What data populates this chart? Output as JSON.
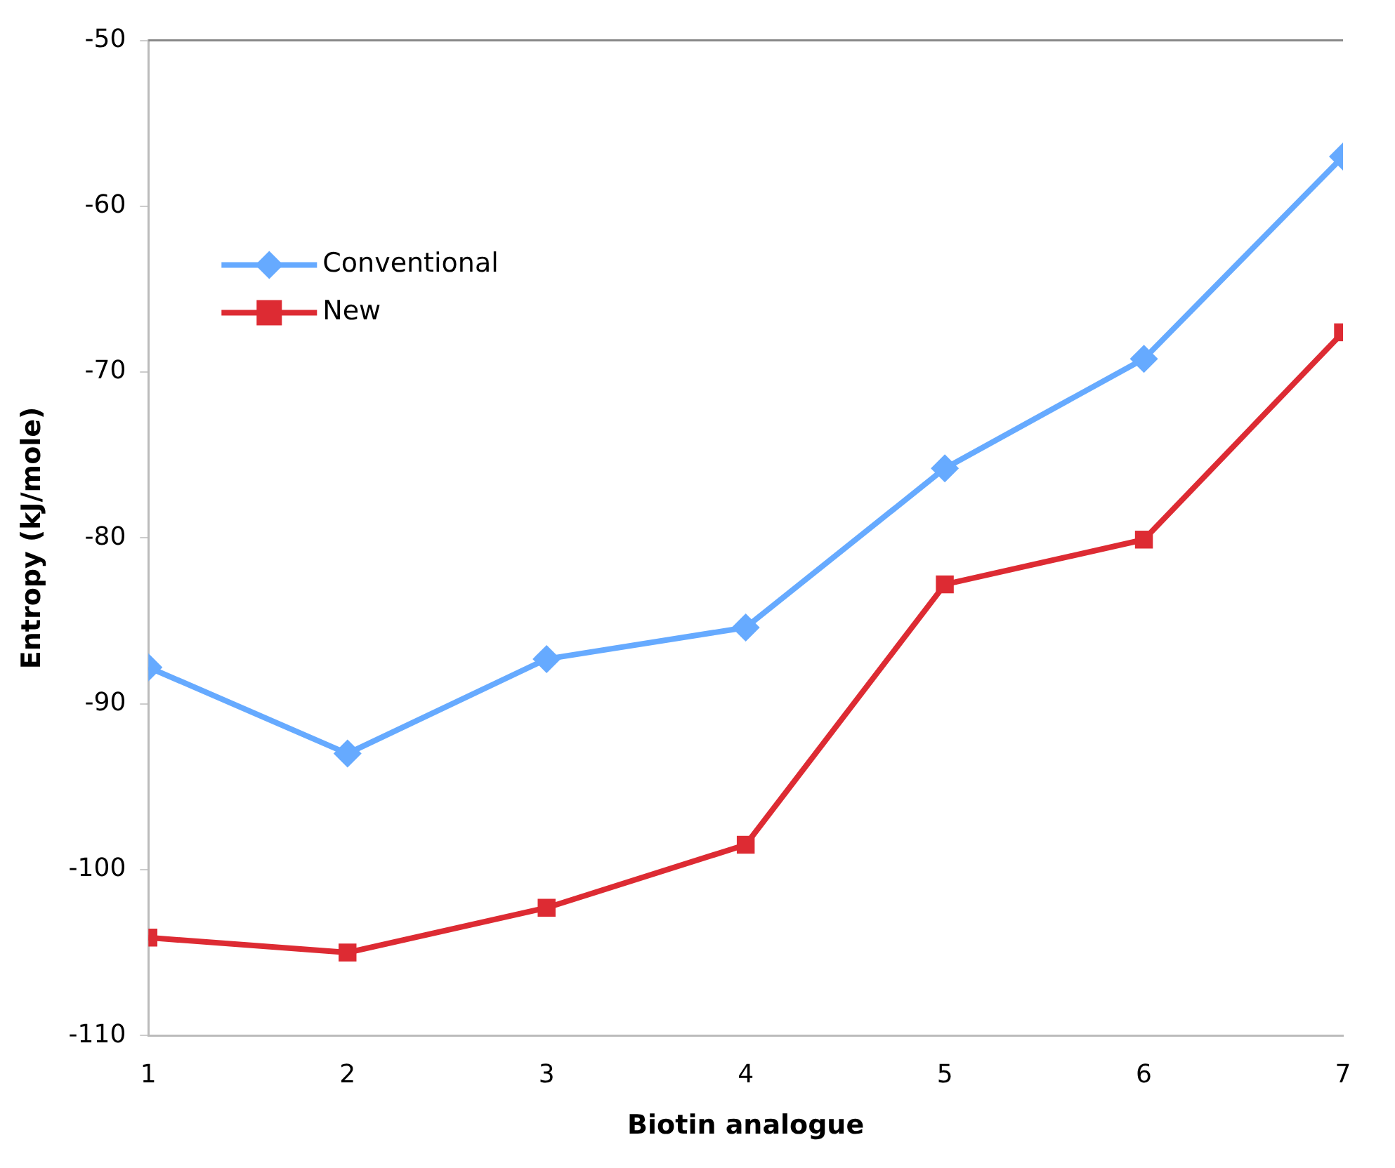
{
  "chart_data": {
    "type": "line",
    "xlabel": "Biotin analogue",
    "ylabel": "Entropy (kJ/mole)",
    "x": [
      1,
      2,
      3,
      4,
      5,
      6,
      7
    ],
    "xlim": [
      1,
      7
    ],
    "xticks": [
      1,
      2,
      3,
      4,
      5,
      6,
      7
    ],
    "ylim": [
      -110,
      -50
    ],
    "yticks": [
      -110,
      -100,
      -90,
      -80,
      -70,
      -60,
      -50
    ],
    "grid": false,
    "legend": "top left",
    "series": [
      {
        "name": "Conventional",
        "color": "#66aaff",
        "marker": "diamond",
        "values": [
          -87.8,
          -93.0,
          -87.3,
          -85.4,
          -75.8,
          -69.2,
          -57.0
        ]
      },
      {
        "name": "New",
        "color": "#dd2b33",
        "marker": "square",
        "values": [
          -104.1,
          -105.0,
          -102.3,
          -98.5,
          -82.8,
          -80.1,
          -67.6
        ]
      }
    ]
  }
}
